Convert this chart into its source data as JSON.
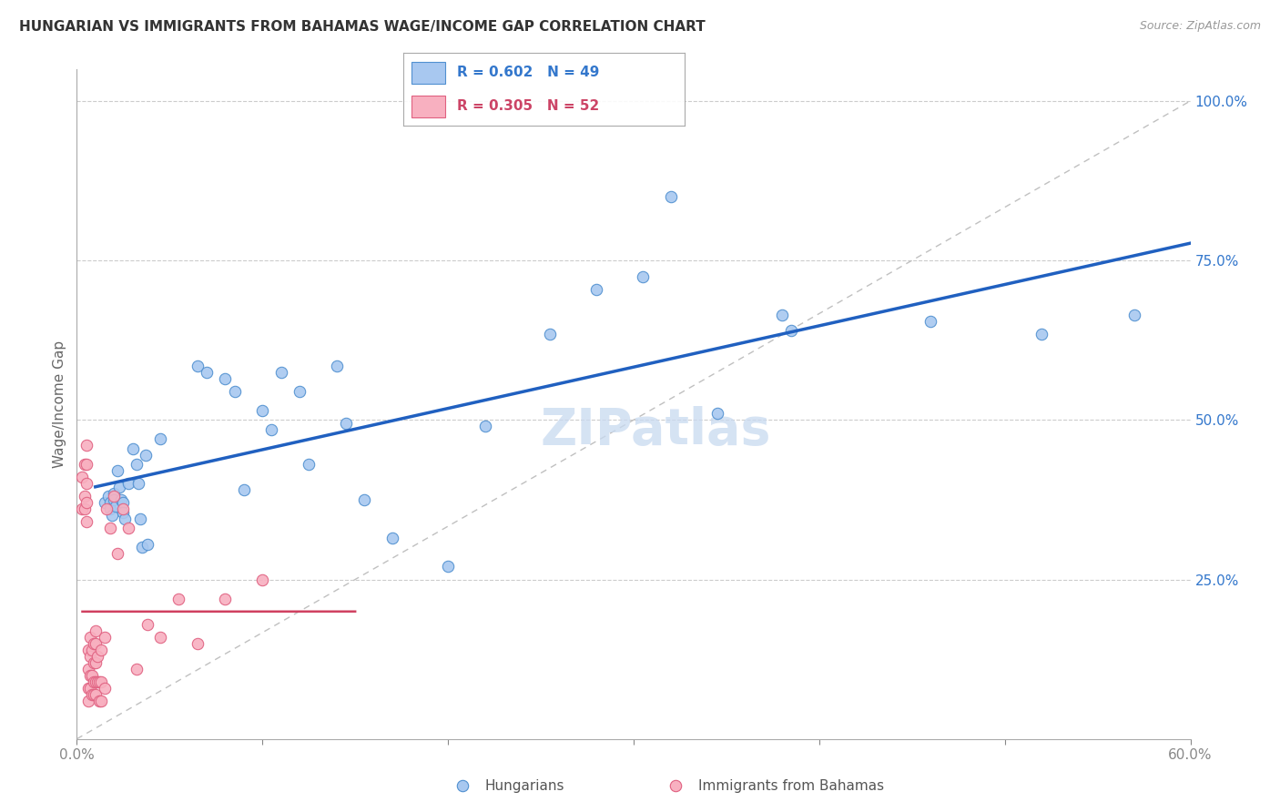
{
  "title": "HUNGARIAN VS IMMIGRANTS FROM BAHAMAS WAGE/INCOME GAP CORRELATION CHART",
  "source": "Source: ZipAtlas.com",
  "ylabel": "Wage/Income Gap",
  "xlim": [
    0.0,
    0.6
  ],
  "ylim": [
    0.0,
    1.05
  ],
  "xticks": [
    0.0,
    0.1,
    0.2,
    0.3,
    0.4,
    0.5,
    0.6
  ],
  "xticklabels": [
    "0.0%",
    "",
    "",
    "",
    "",
    "",
    "60.0%"
  ],
  "ytick_positions": [
    0.25,
    0.5,
    0.75,
    1.0
  ],
  "ytick_labels": [
    "25.0%",
    "50.0%",
    "75.0%",
    "100.0%"
  ],
  "blue_label": "Hungarians",
  "pink_label": "Immigrants from Bahamas",
  "blue_R": 0.602,
  "blue_N": 49,
  "pink_R": 0.305,
  "pink_N": 52,
  "blue_color": "#a8c8f0",
  "pink_color": "#f8b0c0",
  "blue_edge_color": "#5090d0",
  "pink_edge_color": "#e06080",
  "blue_line_color": "#2060c0",
  "pink_line_color": "#d04060",
  "ref_line_color": "#c0c0c0",
  "grid_color": "#cccccc",
  "watermark_color": "#c8daf0",
  "background_color": "#ffffff",
  "blue_scatter_x": [
    0.015,
    0.017,
    0.018,
    0.018,
    0.019,
    0.02,
    0.02,
    0.021,
    0.022,
    0.023,
    0.024,
    0.025,
    0.025,
    0.026,
    0.028,
    0.03,
    0.032,
    0.033,
    0.034,
    0.035,
    0.037,
    0.038,
    0.045,
    0.065,
    0.07,
    0.08,
    0.085,
    0.09,
    0.1,
    0.105,
    0.11,
    0.12,
    0.125,
    0.14,
    0.145,
    0.155,
    0.17,
    0.2,
    0.22,
    0.255,
    0.28,
    0.305,
    0.32,
    0.345,
    0.38,
    0.385,
    0.46,
    0.52,
    0.57
  ],
  "blue_scatter_y": [
    0.37,
    0.38,
    0.37,
    0.36,
    0.35,
    0.385,
    0.375,
    0.365,
    0.42,
    0.395,
    0.375,
    0.37,
    0.355,
    0.345,
    0.4,
    0.455,
    0.43,
    0.4,
    0.345,
    0.3,
    0.445,
    0.305,
    0.47,
    0.585,
    0.575,
    0.565,
    0.545,
    0.39,
    0.515,
    0.485,
    0.575,
    0.545,
    0.43,
    0.585,
    0.495,
    0.375,
    0.315,
    0.27,
    0.49,
    0.635,
    0.705,
    0.725,
    0.85,
    0.51,
    0.665,
    0.64,
    0.655,
    0.635,
    0.665
  ],
  "pink_scatter_x": [
    0.003,
    0.003,
    0.004,
    0.004,
    0.004,
    0.005,
    0.005,
    0.005,
    0.005,
    0.005,
    0.006,
    0.006,
    0.006,
    0.006,
    0.007,
    0.007,
    0.007,
    0.007,
    0.008,
    0.008,
    0.008,
    0.009,
    0.009,
    0.009,
    0.009,
    0.01,
    0.01,
    0.01,
    0.01,
    0.01,
    0.011,
    0.011,
    0.012,
    0.012,
    0.013,
    0.013,
    0.013,
    0.015,
    0.015,
    0.016,
    0.018,
    0.02,
    0.022,
    0.025,
    0.028,
    0.032,
    0.038,
    0.045,
    0.055,
    0.065,
    0.08,
    0.1
  ],
  "pink_scatter_y": [
    0.36,
    0.41,
    0.36,
    0.38,
    0.43,
    0.34,
    0.37,
    0.4,
    0.43,
    0.46,
    0.06,
    0.08,
    0.11,
    0.14,
    0.08,
    0.1,
    0.13,
    0.16,
    0.07,
    0.1,
    0.14,
    0.07,
    0.09,
    0.12,
    0.15,
    0.07,
    0.09,
    0.12,
    0.15,
    0.17,
    0.09,
    0.13,
    0.06,
    0.09,
    0.06,
    0.09,
    0.14,
    0.08,
    0.16,
    0.36,
    0.33,
    0.38,
    0.29,
    0.36,
    0.33,
    0.11,
    0.18,
    0.16,
    0.22,
    0.15,
    0.22,
    0.25
  ]
}
